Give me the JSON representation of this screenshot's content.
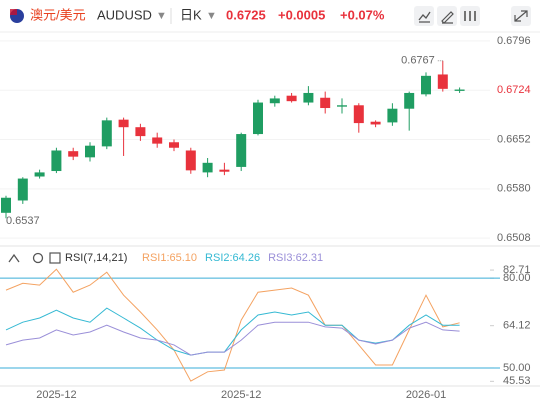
{
  "header": {
    "name": "澳元/美元",
    "symbol": "AUDUSD",
    "period": "日K",
    "price": "0.6725",
    "change": "+0.0005",
    "change_pct": "+0.07%"
  },
  "chart_data": [
    {
      "type": "candlestick",
      "categories": [
        null,
        null,
        null,
        "2025-12",
        null,
        null,
        null,
        null,
        null,
        null,
        null,
        null,
        null,
        null,
        "2025-12",
        null,
        null,
        null,
        null,
        null,
        null,
        null,
        null,
        null,
        null,
        "2026-01",
        null,
        null
      ],
      "open": [
        0.6545,
        0.6563,
        0.6598,
        0.6606,
        0.6635,
        0.6626,
        0.6642,
        0.6681,
        0.667,
        0.6655,
        0.6648,
        0.6636,
        0.6604,
        0.6608,
        0.6612,
        0.666,
        0.6705,
        0.6716,
        0.6706,
        0.6713,
        0.67,
        0.6702,
        0.6678,
        0.6677,
        0.6697,
        0.6718,
        0.6747,
        0.6723
      ],
      "high": [
        0.657,
        0.6597,
        0.6608,
        0.664,
        0.664,
        0.6648,
        0.6684,
        0.6684,
        0.6675,
        0.6662,
        0.6652,
        0.664,
        0.6625,
        0.6618,
        0.6662,
        0.671,
        0.6716,
        0.672,
        0.673,
        0.6722,
        0.6712,
        0.6705,
        0.668,
        0.6705,
        0.6722,
        0.675,
        0.6767,
        0.6728
      ],
      "low": [
        0.6537,
        0.6558,
        0.6595,
        0.6603,
        0.6622,
        0.662,
        0.6638,
        0.6628,
        0.665,
        0.664,
        0.6635,
        0.6602,
        0.6597,
        0.66,
        0.6606,
        0.6658,
        0.67,
        0.6706,
        0.6702,
        0.669,
        0.669,
        0.6662,
        0.667,
        0.6672,
        0.6665,
        0.6715,
        0.6722,
        0.672
      ],
      "close": [
        0.6567,
        0.6595,
        0.6604,
        0.6636,
        0.6627,
        0.6643,
        0.668,
        0.667,
        0.6657,
        0.6646,
        0.664,
        0.6607,
        0.6618,
        0.6605,
        0.666,
        0.6706,
        0.6712,
        0.6708,
        0.672,
        0.6698,
        0.6702,
        0.6676,
        0.6674,
        0.6697,
        0.672,
        0.6745,
        0.6726,
        0.6725
      ],
      "up_color": "#1f9d62",
      "down_color": "#e8323c",
      "ylim": [
        0.6498,
        0.6809
      ],
      "yticks": [
        0.6796,
        0.6724,
        0.6652,
        {
          "value": 0.658,
          "label": "0.6580"
        },
        0.6508
      ],
      "max_label": "0.6767",
      "min_label": "0.6537"
    },
    {
      "type": "line",
      "title": "RSI(7,14,21)",
      "series": [
        {
          "name": "RSI1:65.10",
          "color": "#f4a261",
          "values": [
            76.0,
            78.3,
            77.7,
            83.0,
            75.3,
            77.7,
            82.0,
            74.3,
            68.7,
            62.7,
            56.0,
            45.6,
            48.7,
            49.3,
            66.0,
            75.3,
            76.0,
            76.7,
            74.3,
            64.3,
            64.3,
            57.7,
            51.0,
            51.0,
            62.7,
            74.3,
            63.7,
            65.1
          ]
        },
        {
          "name": "RSI2:64.26",
          "color": "#35b9d3",
          "values": [
            62.7,
            65.3,
            66.7,
            69.3,
            66.7,
            65.3,
            70.0,
            66.7,
            63.3,
            59.3,
            56.0,
            54.3,
            55.3,
            55.3,
            62.7,
            67.7,
            68.7,
            67.7,
            68.7,
            64.3,
            64.3,
            59.3,
            58.3,
            59.3,
            64.3,
            67.7,
            64.3,
            64.26
          ]
        },
        {
          "name": "RSI3:62.31",
          "color": "#9a8fd8",
          "values": [
            57.7,
            59.3,
            60.0,
            62.7,
            61.0,
            62.0,
            64.3,
            62.0,
            60.0,
            59.3,
            57.7,
            54.3,
            55.3,
            55.3,
            59.3,
            64.3,
            65.3,
            65.3,
            65.3,
            63.7,
            63.3,
            59.3,
            58.0,
            59.3,
            63.3,
            65.3,
            62.7,
            62.31
          ]
        }
      ],
      "ylim": [
        44.3,
        83.4
      ],
      "yticks": [
        {
          "value": 80,
          "label": "80.00"
        },
        82.71,
        64.12,
        {
          "value": 50,
          "label": "50.00"
        },
        45.53
      ],
      "level_lines": [
        80,
        50
      ]
    }
  ]
}
